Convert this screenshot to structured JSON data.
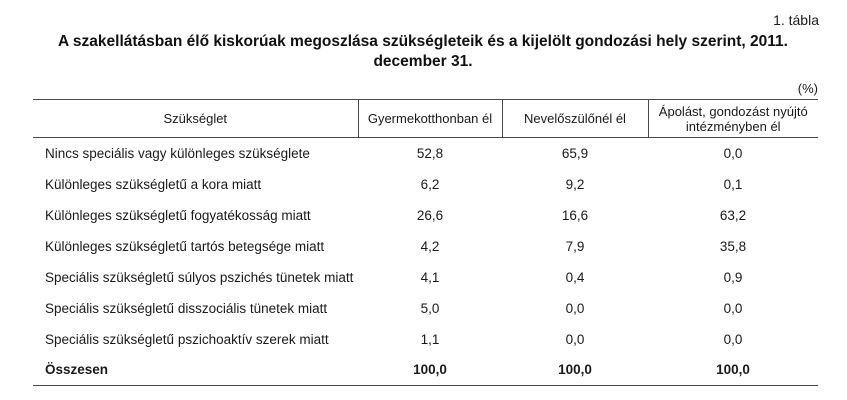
{
  "page": {
    "table_label": "1. tábla",
    "title": "A szakellátásban élő kiskorúak megoszlása szükségleteik és a kijelölt gondozási hely szerint, 2011. december 31.",
    "unit_label": "(%)"
  },
  "table": {
    "columns": [
      "Szükséglet",
      "Gyermekotthonban él",
      "Nevelőszülőnél él",
      "Ápolást, gondozást nyújtó intézményben él"
    ],
    "rows": [
      {
        "label": "Nincs speciális vagy különleges szükséglete",
        "values": [
          "52,8",
          "65,9",
          "0,0"
        ]
      },
      {
        "label": "Különleges szükségletű a kora miatt",
        "values": [
          "6,2",
          "9,2",
          "0,1"
        ]
      },
      {
        "label": "Különleges szükségletű fogyatékosság miatt",
        "values": [
          "26,6",
          "16,6",
          "63,2"
        ]
      },
      {
        "label": "Különleges szükségletű tartós betegsége miatt",
        "values": [
          "4,2",
          "7,9",
          "35,8"
        ]
      },
      {
        "label": "Speciális szükségletű súlyos pszichés tünetek miatt",
        "values": [
          "4,1",
          "0,4",
          "0,9"
        ]
      },
      {
        "label": "Speciális szükségletű disszociális tünetek miatt",
        "values": [
          "5,0",
          "0,0",
          "0,0"
        ]
      },
      {
        "label": "Speciális szükségletű pszichoaktív szerek miatt",
        "values": [
          "1,1",
          "0,0",
          "0,0"
        ]
      },
      {
        "label": "Összesen",
        "values": [
          "100,0",
          "100,0",
          "100,0"
        ]
      }
    ]
  }
}
